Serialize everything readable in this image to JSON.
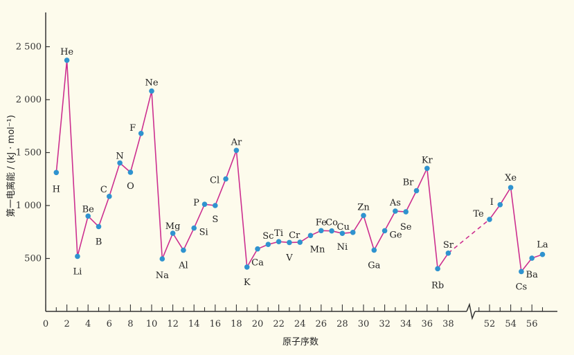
{
  "chart_data": {
    "type": "line",
    "ylabel": "第一电离能 / (kJ · mol⁻¹)",
    "xlabel": "原子序数",
    "ylim": [
      0,
      2800
    ],
    "yticks": [
      500,
      1000,
      1500,
      2000,
      2500
    ],
    "ytick_labels": [
      "500",
      "1 000",
      "1 500",
      "2 000",
      "2 500"
    ],
    "xticks_left": [
      0,
      2,
      4,
      6,
      8,
      10,
      12,
      14,
      16,
      18,
      20,
      22,
      24,
      26,
      28,
      30,
      32,
      34,
      36,
      38
    ],
    "xticks_right": [
      52,
      54,
      56
    ],
    "x_break": "between 38 and 52",
    "grid": false,
    "line_color": "#cc2e8f",
    "marker_color": "#2f93cf",
    "series": [
      {
        "points": [
          {
            "x": 1,
            "y": 1312,
            "label": "H"
          },
          {
            "x": 2,
            "y": 2372,
            "label": "He"
          },
          {
            "x": 3,
            "y": 520,
            "label": "Li"
          },
          {
            "x": 4,
            "y": 900,
            "label": "Be"
          },
          {
            "x": 5,
            "y": 801,
            "label": "B"
          },
          {
            "x": 6,
            "y": 1086,
            "label": "C"
          },
          {
            "x": 7,
            "y": 1402,
            "label": "N"
          },
          {
            "x": 8,
            "y": 1314,
            "label": "O"
          },
          {
            "x": 9,
            "y": 1681,
            "label": "F"
          },
          {
            "x": 10,
            "y": 2081,
            "label": "Ne"
          },
          {
            "x": 11,
            "y": 496,
            "label": "Na"
          },
          {
            "x": 12,
            "y": 738,
            "label": "Mg"
          },
          {
            "x": 13,
            "y": 578,
            "label": "Al"
          },
          {
            "x": 14,
            "y": 787,
            "label": "Si"
          },
          {
            "x": 15,
            "y": 1012,
            "label": "P"
          },
          {
            "x": 16,
            "y": 1000,
            "label": "S"
          },
          {
            "x": 17,
            "y": 1251,
            "label": "Cl"
          },
          {
            "x": 18,
            "y": 1521,
            "label": "Ar"
          },
          {
            "x": 19,
            "y": 419,
            "label": "K"
          },
          {
            "x": 20,
            "y": 590,
            "label": "Ca"
          },
          {
            "x": 21,
            "y": 633,
            "label": "Sc"
          },
          {
            "x": 22,
            "y": 659,
            "label": "Ti"
          },
          {
            "x": 23,
            "y": 651,
            "label": "V"
          },
          {
            "x": 24,
            "y": 653,
            "label": "Cr"
          },
          {
            "x": 25,
            "y": 717,
            "label": "Mn"
          },
          {
            "x": 26,
            "y": 763,
            "label": "Fe"
          },
          {
            "x": 27,
            "y": 760,
            "label": "Co"
          },
          {
            "x": 28,
            "y": 737,
            "label": "Ni"
          },
          {
            "x": 29,
            "y": 746,
            "label": "Cu"
          },
          {
            "x": 30,
            "y": 906,
            "label": "Zn"
          },
          {
            "x": 31,
            "y": 579,
            "label": "Ga"
          },
          {
            "x": 32,
            "y": 762,
            "label": "Ge"
          },
          {
            "x": 33,
            "y": 947,
            "label": "As"
          },
          {
            "x": 34,
            "y": 941,
            "label": "Se"
          },
          {
            "x": 35,
            "y": 1140,
            "label": "Br"
          },
          {
            "x": 36,
            "y": 1351,
            "label": "Kr"
          },
          {
            "x": 37,
            "y": 403,
            "label": "Rb"
          },
          {
            "x": 38,
            "y": 550,
            "label": "Sr"
          },
          {
            "x": 52,
            "y": 869,
            "label": "Te"
          },
          {
            "x": 53,
            "y": 1008,
            "label": "I"
          },
          {
            "x": 54,
            "y": 1170,
            "label": "Xe"
          },
          {
            "x": 55,
            "y": 376,
            "label": "Cs"
          },
          {
            "x": 56,
            "y": 503,
            "label": "Ba"
          },
          {
            "x": 57,
            "y": 538,
            "label": "La"
          }
        ],
        "dashed_segment": [
          38,
          52
        ]
      }
    ]
  }
}
